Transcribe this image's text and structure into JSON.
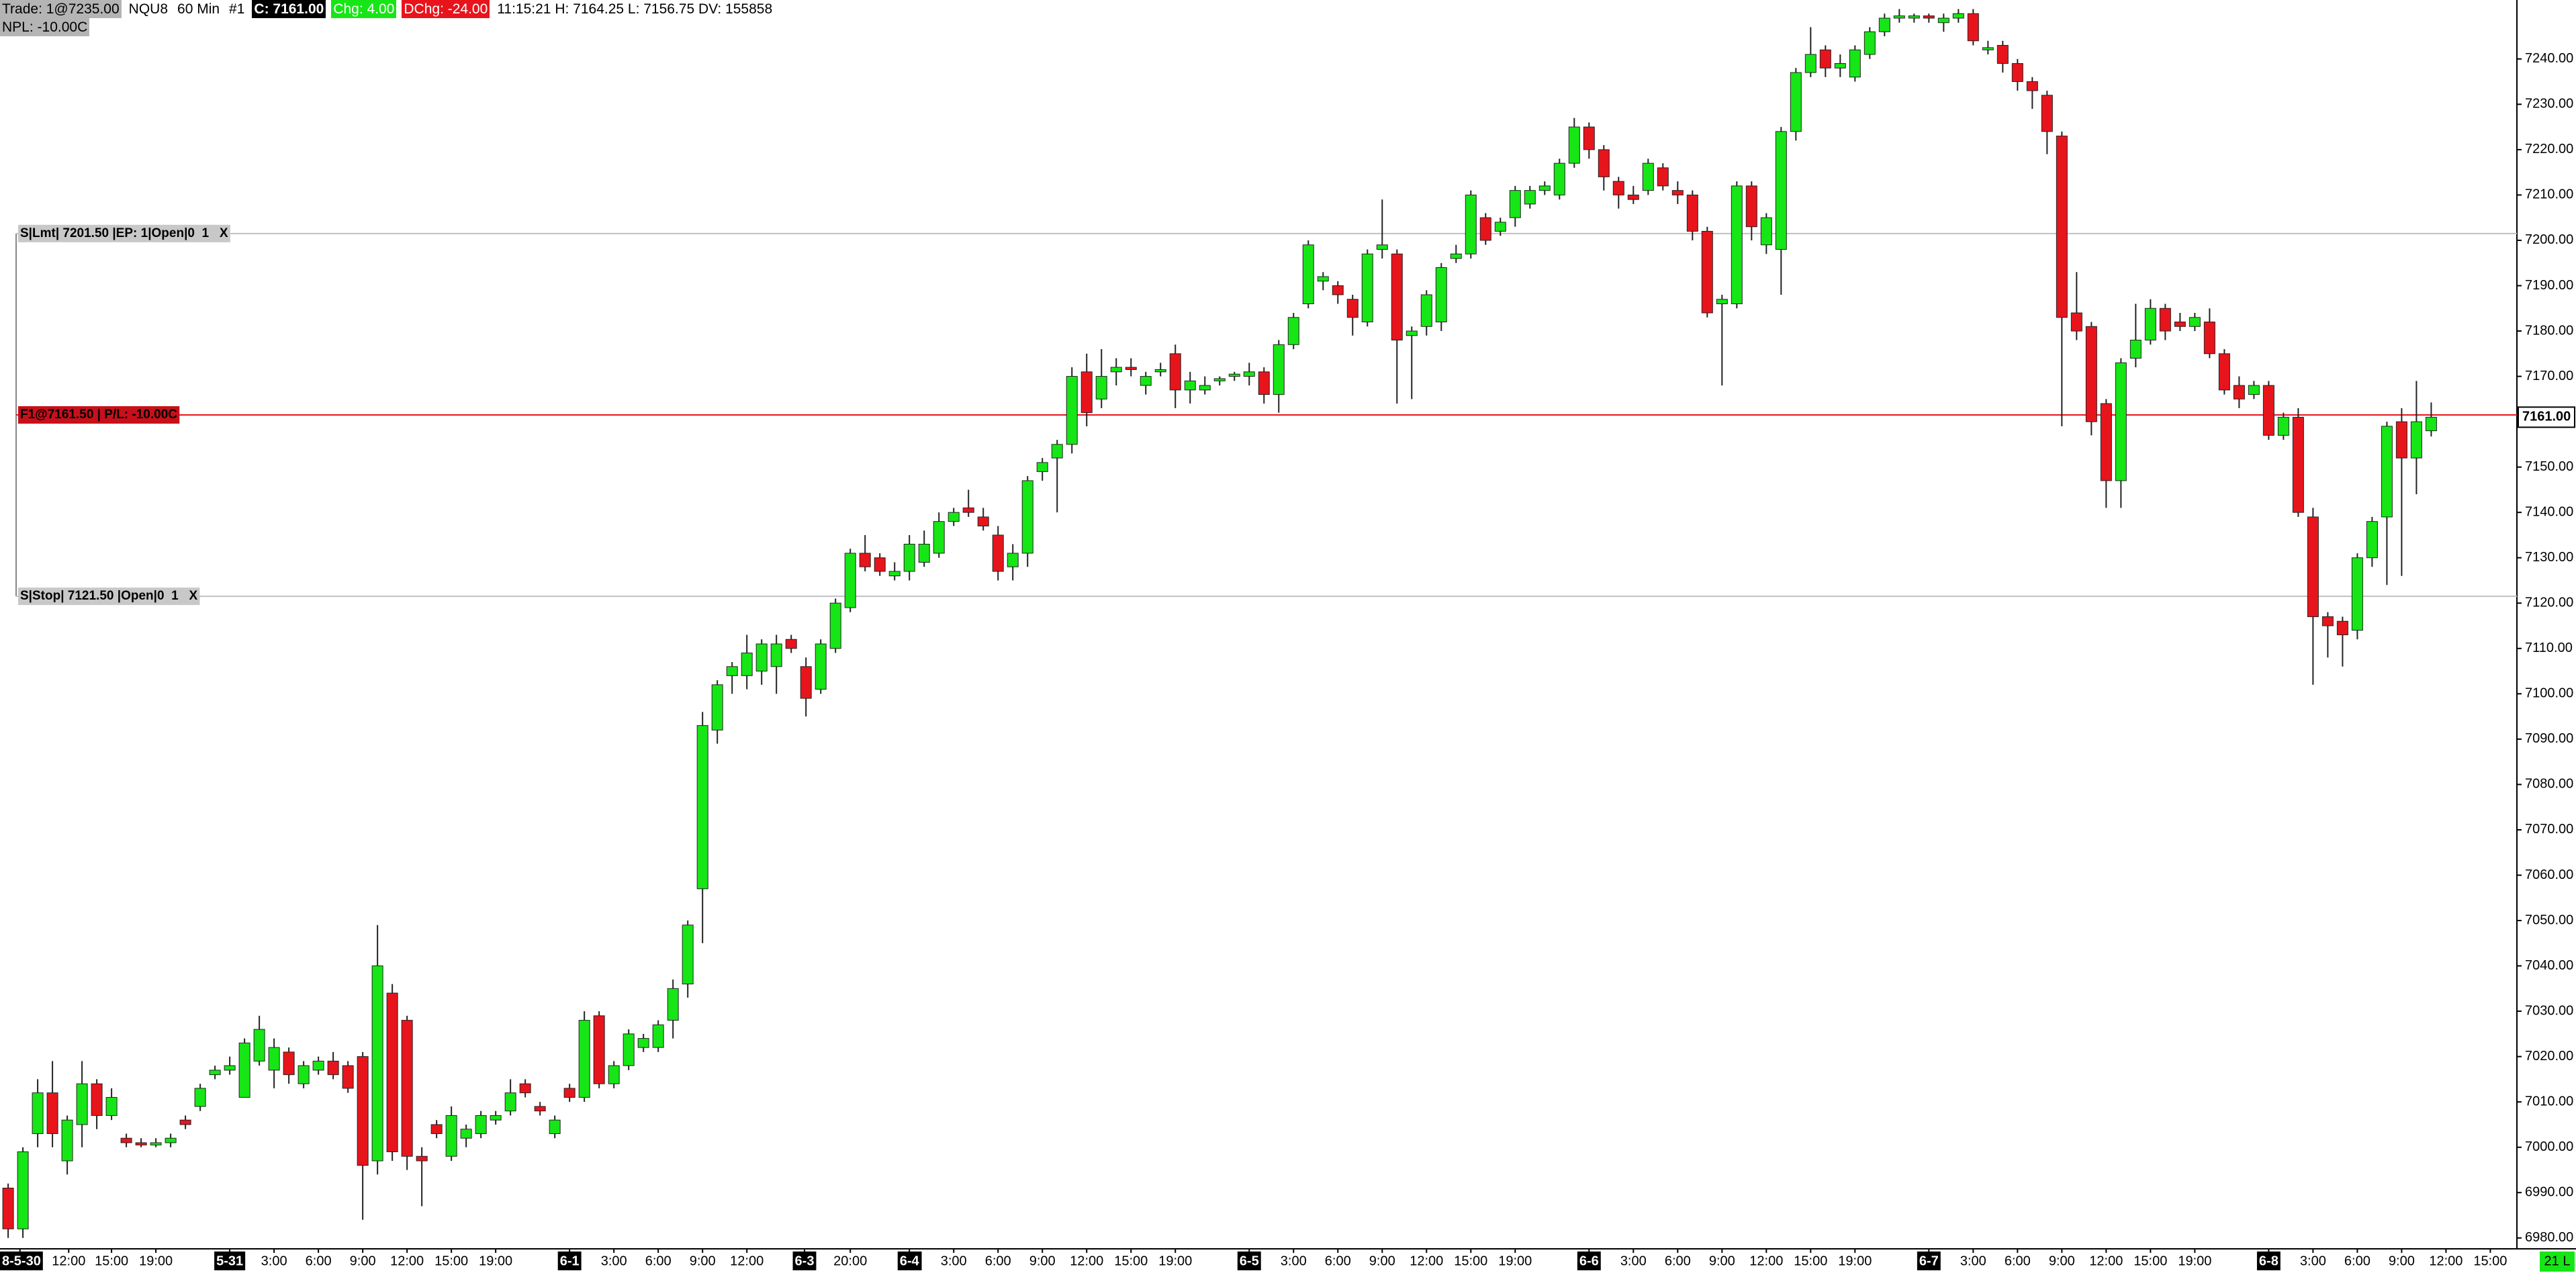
{
  "header": {
    "trade": "Trade: 1@7235.00",
    "symbol": "NQU8",
    "interval": "60 Min",
    "chart_no": "#1",
    "close": "C: 7161.00",
    "change": "Chg: 4.00",
    "day_change": "DChg: -24.00",
    "stats": "11:15:21 H: 7164.25 L: 7156.75 DV: 155858",
    "npl": "NPL: -10.00C"
  },
  "chart_data": {
    "type": "candlestick",
    "up_color": "#16e616",
    "down_color": "#e8141c",
    "xlim": [
      -0.55,
      169.8
    ],
    "ylim": [
      6977.6,
      7253.0
    ],
    "yticks": [
      {
        "value": 6980,
        "label": "6980.00"
      },
      {
        "value": 6990,
        "label": "6990.00"
      },
      {
        "value": 7000,
        "label": "7000.00"
      },
      {
        "value": 7010,
        "label": "7010.00"
      },
      {
        "value": 7020,
        "label": "7020.00"
      },
      {
        "value": 7030,
        "label": "7030.00"
      },
      {
        "value": 7040,
        "label": "7040.00"
      },
      {
        "value": 7050,
        "label": "7050.00"
      },
      {
        "value": 7060,
        "label": "7060.00"
      },
      {
        "value": 7070,
        "label": "7070.00"
      },
      {
        "value": 7080,
        "label": "7080.00"
      },
      {
        "value": 7090,
        "label": "7090.00"
      },
      {
        "value": 7100,
        "label": "7100.00"
      },
      {
        "value": 7110,
        "label": "7110.00"
      },
      {
        "value": 7120,
        "label": "7120.00"
      },
      {
        "value": 7130,
        "label": "7130.00"
      },
      {
        "value": 7140,
        "label": "7140.00"
      },
      {
        "value": 7150,
        "label": "7150.00"
      },
      {
        "value": 7160,
        "label": "7160.00"
      },
      {
        "value": 7170,
        "label": "7170.00"
      },
      {
        "value": 7180,
        "label": "7180.00"
      },
      {
        "value": 7190,
        "label": "7190.00"
      },
      {
        "value": 7200,
        "label": "7200.00"
      },
      {
        "value": 7210,
        "label": "7210.00"
      },
      {
        "value": 7220,
        "label": "7220.00"
      },
      {
        "value": 7230,
        "label": "7230.00"
      },
      {
        "value": 7240,
        "label": "7240.00"
      }
    ],
    "xticks": [
      {
        "value": 0.8,
        "label": "8-5-30"
      },
      {
        "value": 4.1,
        "label": "12:00"
      },
      {
        "value": 7,
        "label": "15:00"
      },
      {
        "value": 10,
        "label": "19:00"
      },
      {
        "value": 15,
        "label": "5-31"
      },
      {
        "value": 18,
        "label": "3:00"
      },
      {
        "value": 21,
        "label": "6:00"
      },
      {
        "value": 24,
        "label": "9:00"
      },
      {
        "value": 27,
        "label": "12:00"
      },
      {
        "value": 30,
        "label": "15:00"
      },
      {
        "value": 33,
        "label": "19:00"
      },
      {
        "value": 38,
        "label": "6-1"
      },
      {
        "value": 41,
        "label": "3:00"
      },
      {
        "value": 44,
        "label": "6:00"
      },
      {
        "value": 47,
        "label": "9:00"
      },
      {
        "value": 50,
        "label": "12:00"
      },
      {
        "value": 53.9,
        "label": "6-3"
      },
      {
        "value": 57,
        "label": "20:00"
      },
      {
        "value": 61,
        "label": "6-4"
      },
      {
        "value": 64,
        "label": "3:00"
      },
      {
        "value": 67,
        "label": "6:00"
      },
      {
        "value": 70,
        "label": "9:00"
      },
      {
        "value": 73,
        "label": "12:00"
      },
      {
        "value": 76,
        "label": "15:00"
      },
      {
        "value": 79,
        "label": "19:00"
      },
      {
        "value": 84,
        "label": "6-5"
      },
      {
        "value": 87,
        "label": "3:00"
      },
      {
        "value": 90,
        "label": "6:00"
      },
      {
        "value": 93,
        "label": "9:00"
      },
      {
        "value": 96,
        "label": "12:00"
      },
      {
        "value": 99,
        "label": "15:00"
      },
      {
        "value": 102,
        "label": "19:00"
      },
      {
        "value": 107,
        "label": "6-6"
      },
      {
        "value": 110,
        "label": "3:00"
      },
      {
        "value": 113,
        "label": "6:00"
      },
      {
        "value": 116,
        "label": "9:00"
      },
      {
        "value": 119,
        "label": "12:00"
      },
      {
        "value": 122,
        "label": "15:00"
      },
      {
        "value": 125,
        "label": "19:00"
      },
      {
        "value": 130,
        "label": "6-7"
      },
      {
        "value": 133,
        "label": "3:00"
      },
      {
        "value": 136,
        "label": "6:00"
      },
      {
        "value": 139,
        "label": "9:00"
      },
      {
        "value": 142,
        "label": "12:00"
      },
      {
        "value": 145,
        "label": "15:00"
      },
      {
        "value": 148,
        "label": "19:00"
      },
      {
        "value": 153,
        "label": "6-8"
      },
      {
        "value": 156,
        "label": "3:00"
      },
      {
        "value": 159,
        "label": "6:00"
      },
      {
        "value": 162,
        "label": "9:00"
      },
      {
        "value": 165,
        "label": "12:00"
      },
      {
        "value": 168,
        "label": "15:00"
      }
    ],
    "candles": [
      [
        6991,
        6992,
        6980,
        6982
      ],
      [
        6982,
        7000,
        6980,
        6999
      ],
      [
        7003,
        7015,
        7000,
        7012
      ],
      [
        7012,
        7019,
        7000,
        7003
      ],
      [
        6997,
        7007,
        6994,
        7006
      ],
      [
        7005,
        7019,
        7000,
        7014
      ],
      [
        7014,
        7015,
        7004,
        7007
      ],
      [
        7007,
        7013,
        7006,
        7011
      ],
      [
        7002,
        7003,
        7000,
        7001
      ],
      [
        7001,
        7002,
        7000,
        7000.5
      ],
      [
        7000.5,
        7002,
        7000,
        7001
      ],
      [
        7001,
        7003,
        7000,
        7002
      ],
      [
        7006,
        7007,
        7004,
        7005
      ],
      [
        7009,
        7014,
        7008,
        7013
      ],
      [
        7016,
        7018,
        7015,
        7017
      ],
      [
        7017,
        7020,
        7016,
        7018
      ],
      [
        7011,
        7024,
        7011,
        7023
      ],
      [
        7019,
        7029,
        7018,
        7026
      ],
      [
        7017,
        7024,
        7013,
        7022
      ],
      [
        7021,
        7022,
        7014,
        7016
      ],
      [
        7014,
        7019,
        7013,
        7018
      ],
      [
        7017,
        7020,
        7016,
        7019
      ],
      [
        7019,
        7021,
        7015,
        7016
      ],
      [
        7018,
        7019,
        7012,
        7013
      ],
      [
        7020,
        7021,
        6984,
        6996
      ],
      [
        6997,
        7049,
        6994,
        7040
      ],
      [
        7034,
        7036,
        6997,
        6999
      ],
      [
        7028,
        7029,
        6995,
        6998
      ],
      [
        6998,
        7000,
        6987,
        6997
      ],
      [
        7005,
        7006,
        7002,
        7003
      ],
      [
        6998,
        7009,
        6997,
        7007
      ],
      [
        7002,
        7005,
        7000,
        7004
      ],
      [
        7003,
        7008,
        7002,
        7007
      ],
      [
        7006,
        7008,
        7005,
        7007
      ],
      [
        7008,
        7015,
        7007,
        7012
      ],
      [
        7014,
        7015,
        7011,
        7012
      ],
      [
        7009,
        7010,
        7007,
        7008
      ],
      [
        7003,
        7007,
        7002,
        7006
      ],
      [
        7013,
        7014,
        7010,
        7011
      ],
      [
        7011,
        7030,
        7010,
        7028
      ],
      [
        7029,
        7030,
        7013,
        7014
      ],
      [
        7014,
        7019,
        7013,
        7018
      ],
      [
        7018,
        7026,
        7017,
        7025
      ],
      [
        7022,
        7025,
        7021,
        7024
      ],
      [
        7022,
        7028,
        7021,
        7027
      ],
      [
        7028,
        7037,
        7024,
        7035
      ],
      [
        7036,
        7050,
        7033,
        7049
      ],
      [
        7057,
        7096,
        7045,
        7093
      ],
      [
        7092,
        7103,
        7089,
        7102
      ],
      [
        7104,
        7107,
        7100,
        7106
      ],
      [
        7104,
        7113,
        7101,
        7109
      ],
      [
        7105,
        7112,
        7102,
        7111
      ],
      [
        7106,
        7113,
        7100,
        7111
      ],
      [
        7112,
        7113,
        7109,
        7110
      ],
      [
        7106,
        7108,
        7095,
        7099
      ],
      [
        7101,
        7112,
        7100,
        7111
      ],
      [
        7110,
        7121,
        7109,
        7120
      ],
      [
        7119,
        7132,
        7118,
        7131
      ],
      [
        7131,
        7135,
        7127,
        7128
      ],
      [
        7130,
        7131,
        7126,
        7127
      ],
      [
        7126,
        7129,
        7125,
        7127
      ],
      [
        7127,
        7135,
        7125,
        7133
      ],
      [
        7129,
        7136,
        7128,
        7133
      ],
      [
        7131,
        7140,
        7130,
        7138
      ],
      [
        7138,
        7141,
        7137,
        7140
      ],
      [
        7141,
        7145,
        7139,
        7140
      ],
      [
        7139,
        7141,
        7136,
        7137
      ],
      [
        7135,
        7137,
        7125,
        7127
      ],
      [
        7128,
        7133,
        7125,
        7131
      ],
      [
        7131,
        7148,
        7128,
        7147
      ],
      [
        7149,
        7152,
        7147,
        7151
      ],
      [
        7152,
        7156,
        7140,
        7155
      ],
      [
        7155,
        7172,
        7153,
        7170
      ],
      [
        7171,
        7175,
        7159,
        7162
      ],
      [
        7165,
        7176,
        7163,
        7170
      ],
      [
        7171,
        7174,
        7168,
        7172
      ],
      [
        7172,
        7174,
        7170,
        7171.5
      ],
      [
        7168,
        7171,
        7166,
        7170
      ],
      [
        7171,
        7173,
        7170,
        7171.5
      ],
      [
        7175,
        7177,
        7163,
        7167
      ],
      [
        7167,
        7171,
        7164,
        7169
      ],
      [
        7167,
        7170,
        7166,
        7168
      ],
      [
        7169,
        7170,
        7168,
        7169.5
      ],
      [
        7170,
        7171,
        7169,
        7170.5
      ],
      [
        7170,
        7173,
        7168,
        7171
      ],
      [
        7171,
        7172,
        7164,
        7166
      ],
      [
        7166,
        7178,
        7162,
        7177
      ],
      [
        7177,
        7184,
        7176,
        7183
      ],
      [
        7186,
        7200,
        7185,
        7199
      ],
      [
        7191,
        7193,
        7189,
        7192
      ],
      [
        7190,
        7191,
        7186,
        7188
      ],
      [
        7187,
        7188,
        7179,
        7183
      ],
      [
        7182,
        7198,
        7181,
        7197
      ],
      [
        7198,
        7209,
        7196,
        7199
      ],
      [
        7197,
        7198,
        7164,
        7178
      ],
      [
        7179,
        7181,
        7165,
        7180
      ],
      [
        7181,
        7189,
        7179,
        7188
      ],
      [
        7182,
        7195,
        7180,
        7194
      ],
      [
        7196,
        7199,
        7195,
        7197
      ],
      [
        7197,
        7211,
        7196,
        7210
      ],
      [
        7205,
        7206,
        7199,
        7200
      ],
      [
        7202,
        7205,
        7201,
        7204
      ],
      [
        7205,
        7212,
        7203,
        7211
      ],
      [
        7208,
        7212,
        7207,
        7211
      ],
      [
        7211,
        7213,
        7210,
        7212
      ],
      [
        7210,
        7218,
        7209,
        7217
      ],
      [
        7217,
        7227,
        7216,
        7225
      ],
      [
        7225,
        7226,
        7218,
        7220
      ],
      [
        7220,
        7221,
        7211,
        7214
      ],
      [
        7213,
        7214,
        7207,
        7210
      ],
      [
        7210,
        7212,
        7208,
        7209
      ],
      [
        7211,
        7218,
        7210,
        7217
      ],
      [
        7216,
        7217,
        7211,
        7212
      ],
      [
        7211,
        7213,
        7208,
        7210
      ],
      [
        7210,
        7211,
        7200,
        7202
      ],
      [
        7202,
        7203,
        7183,
        7184
      ],
      [
        7186,
        7188,
        7168,
        7187
      ],
      [
        7186,
        7213,
        7185,
        7212
      ],
      [
        7212,
        7213,
        7200,
        7203
      ],
      [
        7199,
        7206,
        7197,
        7205
      ],
      [
        7198,
        7225,
        7188,
        7224
      ],
      [
        7224,
        7238,
        7222,
        7237
      ],
      [
        7237,
        7247,
        7236,
        7241
      ],
      [
        7242,
        7243,
        7236,
        7238
      ],
      [
        7238,
        7241,
        7236,
        7239
      ],
      [
        7236,
        7243,
        7235,
        7242
      ],
      [
        7241,
        7247,
        7240,
        7246
      ],
      [
        7246,
        7250,
        7245,
        7249
      ],
      [
        7249,
        7251,
        7248,
        7249.5
      ],
      [
        7249,
        7250,
        7248,
        7249.5
      ],
      [
        7249.5,
        7250,
        7248,
        7249
      ],
      [
        7248,
        7250,
        7246,
        7249
      ],
      [
        7249,
        7251,
        7248,
        7250
      ],
      [
        7250,
        7251,
        7243,
        7244
      ],
      [
        7242,
        7244,
        7241,
        7242.5
      ],
      [
        7243,
        7244,
        7237,
        7239
      ],
      [
        7239,
        7240,
        7233,
        7235
      ],
      [
        7235,
        7236,
        7229,
        7233
      ],
      [
        7232,
        7233,
        7219,
        7224
      ],
      [
        7223,
        7224,
        7159,
        7183
      ],
      [
        7184,
        7193,
        7178,
        7180
      ],
      [
        7181,
        7182,
        7157,
        7160
      ],
      [
        7164,
        7165,
        7141,
        7147
      ],
      [
        7147,
        7174,
        7141,
        7173
      ],
      [
        7174,
        7186,
        7172,
        7178
      ],
      [
        7178,
        7187,
        7177,
        7185
      ],
      [
        7185,
        7186,
        7178,
        7180
      ],
      [
        7182,
        7184,
        7180,
        7181
      ],
      [
        7181,
        7184,
        7180,
        7183
      ],
      [
        7182,
        7185,
        7174,
        7175
      ],
      [
        7175,
        7176,
        7166,
        7167
      ],
      [
        7168,
        7170,
        7163,
        7165
      ],
      [
        7166,
        7169,
        7165,
        7168
      ],
      [
        7168,
        7169,
        7156,
        7157
      ],
      [
        7157,
        7162,
        7156,
        7161
      ],
      [
        7161,
        7163,
        7139,
        7140
      ],
      [
        7139,
        7141,
        7102,
        7117
      ],
      [
        7117,
        7118,
        7108,
        7115
      ],
      [
        7116,
        7117,
        7106,
        7113
      ],
      [
        7114,
        7131,
        7112,
        7130
      ],
      [
        7130,
        7139,
        7128,
        7138
      ],
      [
        7139,
        7160,
        7124,
        7159
      ],
      [
        7160,
        7163,
        7126,
        7152
      ],
      [
        7152,
        7169,
        7144,
        7160
      ],
      [
        7158,
        7164.25,
        7156.75,
        7161
      ]
    ],
    "price_lines": [
      {
        "label": "S|Lmt| 7201.50 |EP: 1|Open|0  1   X",
        "value": 7201.5,
        "color": "#c0c0c0"
      },
      {
        "label": "F1@7161.50 | P/L: -10.00C",
        "value": 7161.5,
        "color": "#e8141c"
      },
      {
        "label": "S|Stop| 7121.50 |Open|0  1   X",
        "value": 7121.5,
        "color": "#c0c0c0"
      }
    ],
    "last_price": {
      "value": 7161,
      "label": "7161.00"
    },
    "status_label": "21 L"
  }
}
